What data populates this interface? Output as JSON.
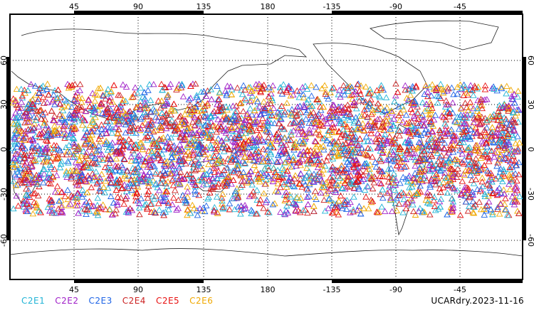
{
  "map": {
    "lon_ticks": [
      "45",
      "90",
      "135",
      "180",
      "-135",
      "-90",
      "-45"
    ],
    "lat_ticks": [
      "60",
      "30",
      "0",
      "-30",
      "-60"
    ],
    "legend": [
      {
        "label": "C2E1",
        "color": "#21b4d6"
      },
      {
        "label": "C2E2",
        "color": "#a020c8"
      },
      {
        "label": "C2E3",
        "color": "#1e64e6"
      },
      {
        "label": "C2E4",
        "color": "#cc2222"
      },
      {
        "label": "C2E5",
        "color": "#e81010"
      },
      {
        "label": "C2E6",
        "color": "#f0a800"
      }
    ],
    "caption": "UCARdry.2023-11-16",
    "point_density": "dense band between approx 45N and 45S"
  }
}
